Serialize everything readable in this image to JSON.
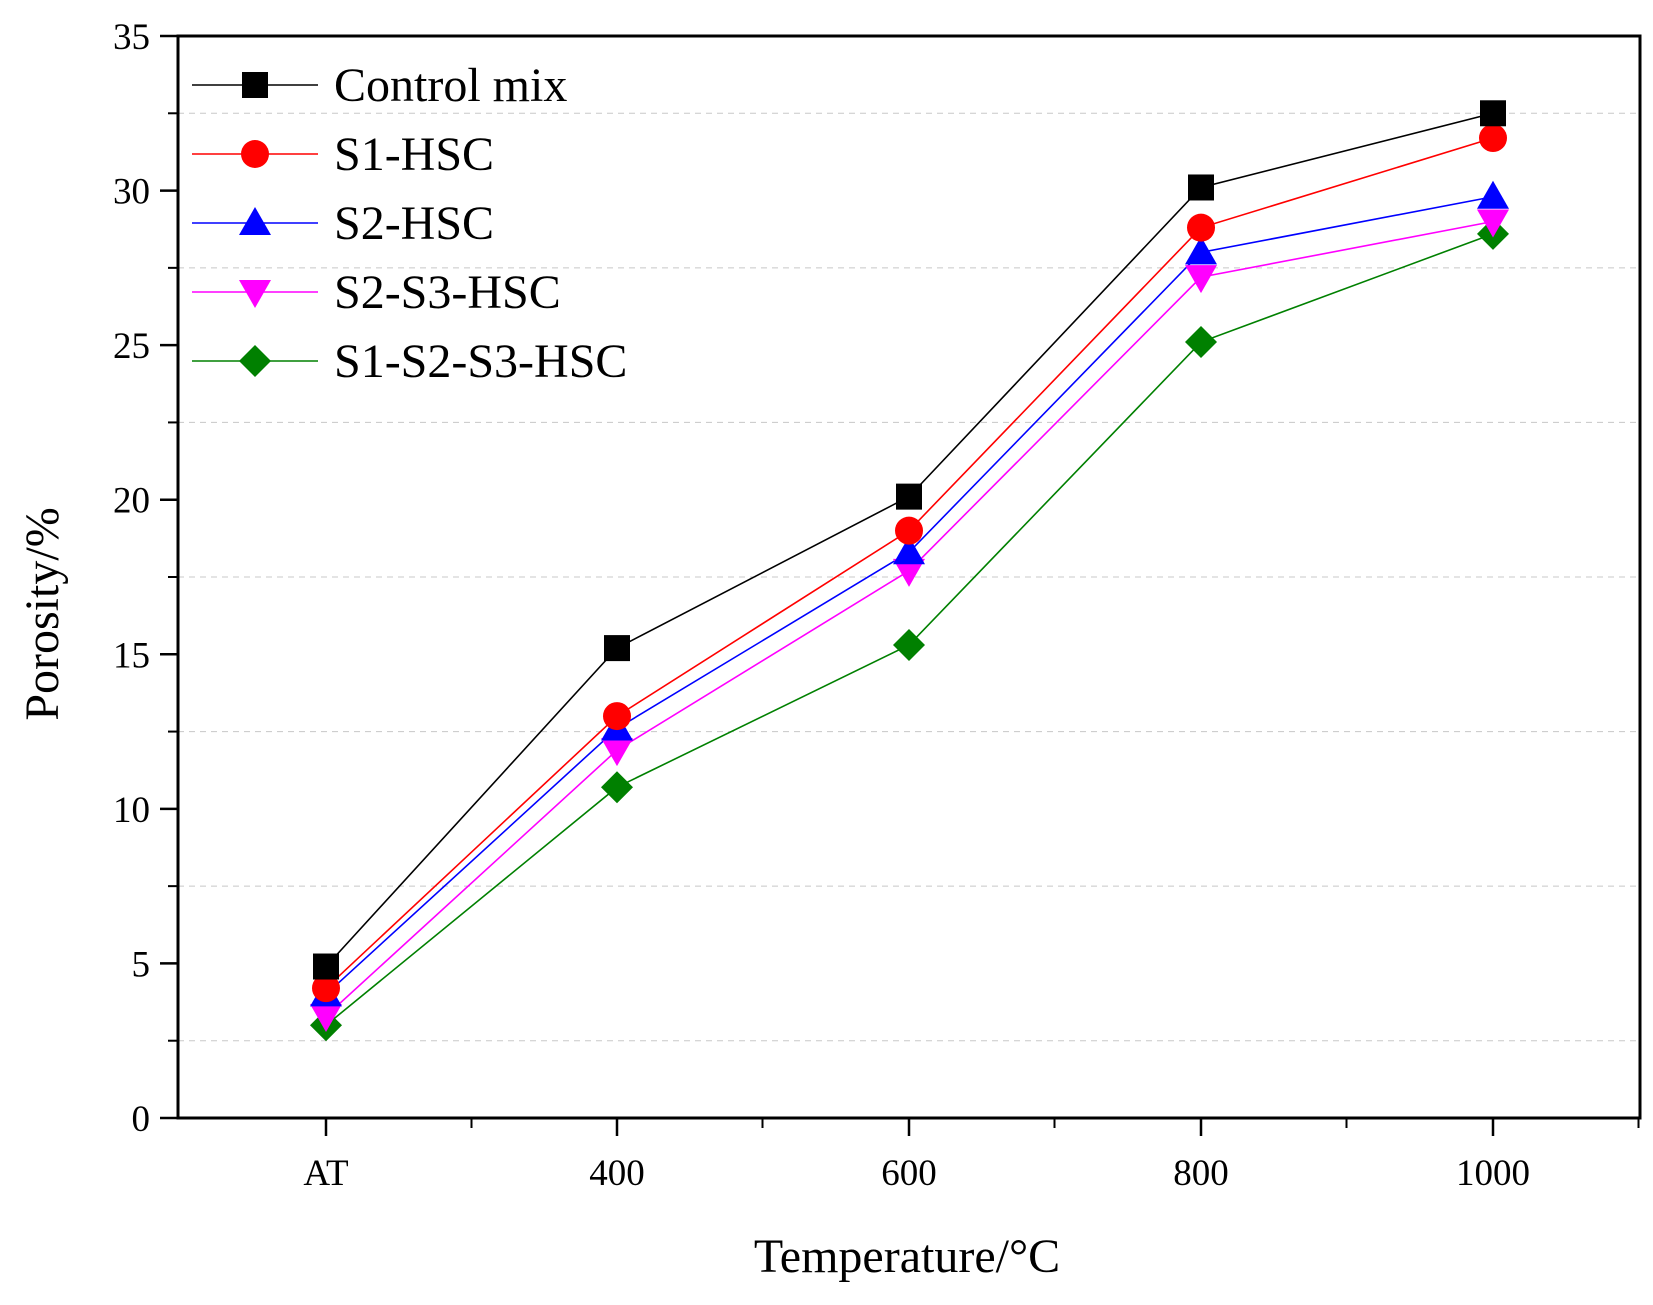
{
  "chart_data": {
    "type": "line",
    "title": "",
    "xlabel": "Temperature/°C",
    "ylabel": "Porosity/%",
    "categories": [
      "AT",
      "400",
      "600",
      "800",
      "1000"
    ],
    "ylim": [
      0,
      35
    ],
    "yticks": [
      "0",
      "5",
      "10",
      "15",
      "20",
      "25",
      "30",
      "35"
    ],
    "grid": "horizontal dashed at minor ticks",
    "legend_position": "top-left",
    "series": [
      {
        "name": "Control mix",
        "marker": "square",
        "color": "#000000",
        "values": [
          4.9,
          15.2,
          20.1,
          30.1,
          32.5
        ]
      },
      {
        "name": "S1-HSC",
        "marker": "circle",
        "color": "#ff0000",
        "values": [
          4.2,
          13.0,
          19.0,
          28.8,
          31.7
        ]
      },
      {
        "name": "S2-HSC",
        "marker": "triangle-up",
        "color": "#0000ff",
        "values": [
          4.0,
          12.6,
          18.3,
          28.0,
          29.8
        ]
      },
      {
        "name": "S2-S3-HSC",
        "marker": "triangle-down",
        "color": "#ff00ff",
        "values": [
          3.3,
          11.9,
          17.7,
          27.2,
          29.0
        ]
      },
      {
        "name": "S1-S2-S3-HSC",
        "marker": "diamond",
        "color": "#008000",
        "values": [
          3.0,
          10.7,
          15.3,
          25.1,
          28.6
        ]
      }
    ]
  }
}
